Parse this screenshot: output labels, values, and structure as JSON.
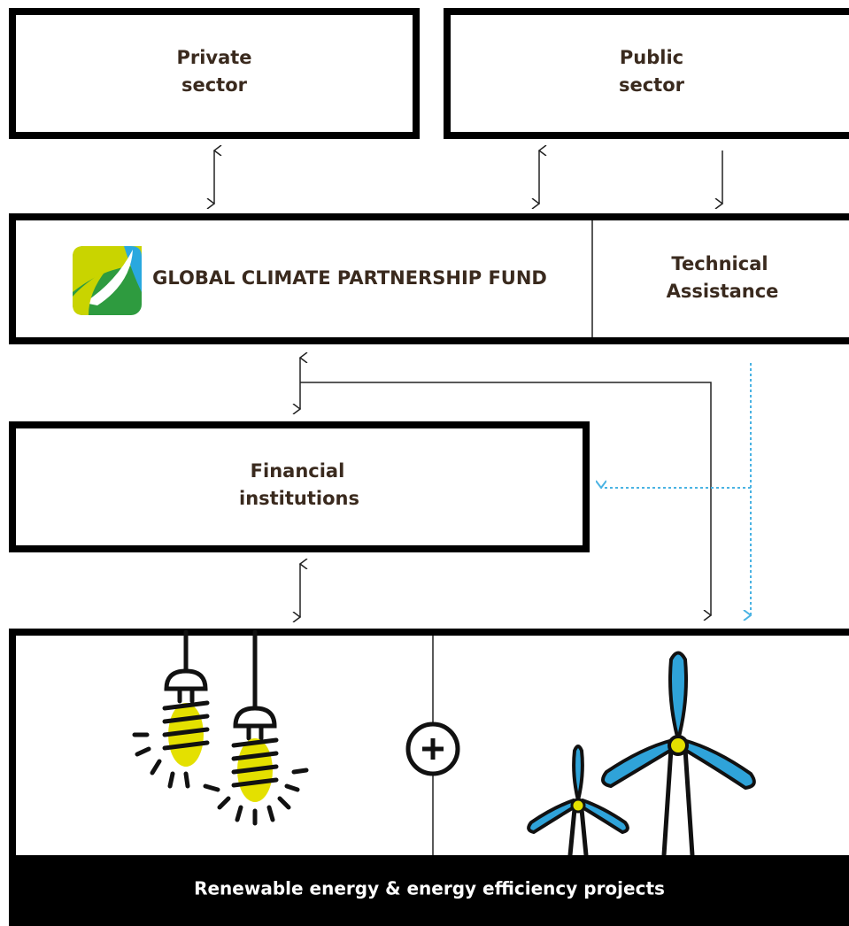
{
  "nodes": [
    {
      "lines": [
        "Private",
        "sector"
      ]
    },
    {
      "lines": [
        "Public",
        "sector"
      ]
    },
    {
      "lines": [
        "GLOBAL CLIMATE PARTNERSHIP FUND"
      ]
    },
    {
      "lines": [
        "Technical",
        "Assistance"
      ]
    },
    {
      "lines": [
        "Financial",
        "institutions"
      ]
    },
    {
      "lines": [
        "Renewable energy & energy efficiency projects"
      ]
    }
  ]
}
